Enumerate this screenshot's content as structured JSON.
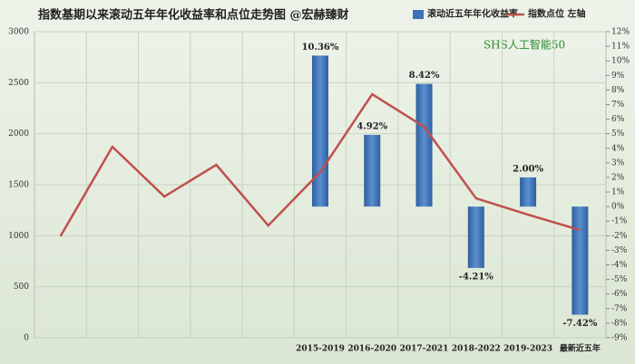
{
  "chart_data": {
    "type": "bar_line",
    "title": "指数基期以来滚动五年年化收益率和点位走势图 @宏赫臻财",
    "annotation": "SHS人工智能50",
    "categories": [
      null,
      null,
      null,
      null,
      null,
      "2015-2019",
      "2016-2020",
      "2017-2021",
      "2018-2022",
      "2019-2023",
      "最新近五年"
    ],
    "series": [
      {
        "name": "滚动近五年年化收益率",
        "type": "bar",
        "axis": "y2",
        "color": "#3d71b8",
        "values": [
          null,
          null,
          null,
          null,
          null,
          10.36,
          4.92,
          8.42,
          -4.21,
          2.0,
          -7.42
        ],
        "value_labels": [
          null,
          null,
          null,
          null,
          null,
          "10.36%",
          "4.92%",
          "8.42%",
          "-4.21%",
          "2.00%",
          "-7.42%"
        ]
      },
      {
        "name": "指数点位 左轴",
        "type": "line",
        "axis": "y",
        "color": "#c0504d",
        "values": [
          995,
          1872,
          1384,
          1695,
          1100,
          1624,
          2387,
          2068,
          1366,
          1207,
          1056
        ]
      }
    ],
    "ylim": [
      0,
      3000
    ],
    "yticks": [
      0,
      500,
      1000,
      1500,
      2000,
      2500,
      3000
    ],
    "y2lim": [
      -9,
      12
    ],
    "y2ticks": [
      {
        "value": -9,
        "label": "-9%"
      },
      {
        "value": -8,
        "label": "-8%"
      },
      {
        "value": -7,
        "label": "-7%"
      },
      {
        "value": -6,
        "label": "-6%"
      },
      {
        "value": -5,
        "label": "-5%"
      },
      {
        "value": -4,
        "label": "-4%"
      },
      {
        "value": -3,
        "label": "-3%"
      },
      {
        "value": -2,
        "label": "-2%"
      },
      {
        "value": -1,
        "label": "-1%"
      },
      {
        "value": 0,
        "label": "0%"
      },
      {
        "value": 1,
        "label": "1%"
      },
      {
        "value": 2,
        "label": "2%"
      },
      {
        "value": 3,
        "label": "3%"
      },
      {
        "value": 4,
        "label": "4%"
      },
      {
        "value": 5,
        "label": "5%"
      },
      {
        "value": 6,
        "label": "6%"
      },
      {
        "value": 7,
        "label": "7%"
      },
      {
        "value": 8,
        "label": "8%"
      },
      {
        "value": 9,
        "label": "9%"
      },
      {
        "value": 10,
        "label": "10%"
      },
      {
        "value": 11,
        "label": "11%"
      },
      {
        "value": 12,
        "label": "12%"
      }
    ],
    "grid": true
  }
}
